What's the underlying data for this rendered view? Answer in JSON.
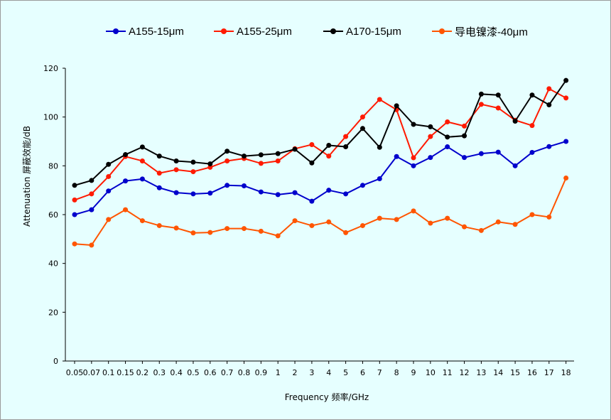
{
  "chart_data": {
    "type": "line",
    "title": "",
    "xlabel": "Frequency 频率/GHz",
    "ylabel": "Attenuation 屏蔽效能/dB",
    "ylim": [
      0,
      120
    ],
    "yticks": [
      "0",
      "20",
      "40",
      "60",
      "80",
      "100",
      "120"
    ],
    "grid": false,
    "legend_position": "top",
    "categories": [
      "0.05",
      "0.07",
      "0.1",
      "0.15",
      "0.2",
      "0.3",
      "0.4",
      "0.5",
      "0.6",
      "0.7",
      "0.8",
      "0.9",
      "1",
      "2",
      "3",
      "4",
      "5",
      "6",
      "7",
      "8",
      "9",
      "10",
      "11",
      "12",
      "13",
      "14",
      "15",
      "16",
      "17",
      "18"
    ],
    "series": [
      {
        "name": "A155-15μm",
        "color": "#0000cc",
        "values": [
          60,
          62,
          69.7,
          73.8,
          74.6,
          71,
          69,
          68.5,
          68.8,
          72,
          71.8,
          69.3,
          68.2,
          69,
          65.5,
          70,
          68.5,
          72,
          74.7,
          83.8,
          80,
          83.4,
          87.8,
          83.4,
          85,
          85.6,
          80,
          85.5,
          87.9,
          90
        ]
      },
      {
        "name": "A155-25μm",
        "color": "#ff1a00",
        "values": [
          66,
          68.5,
          75.6,
          83.8,
          82,
          77,
          78.4,
          77.6,
          79.4,
          82,
          83,
          81,
          82,
          87,
          88.7,
          84,
          92,
          100,
          107.2,
          103,
          83.3,
          92,
          98,
          96.3,
          105.2,
          103.7,
          98.7,
          96.5,
          111.6,
          107.8
        ]
      },
      {
        "name": "A170-15μm",
        "color": "#000000",
        "values": [
          72,
          74,
          80.6,
          84.6,
          87.7,
          84,
          82,
          81.5,
          80.8,
          86,
          84,
          84.5,
          85,
          86.8,
          81.2,
          88.4,
          87.8,
          95.3,
          87.6,
          104.6,
          97,
          96,
          91.8,
          92.3,
          109.4,
          109,
          98.3,
          109,
          105,
          115
        ]
      },
      {
        "name": "导电镍漆-40μm",
        "color": "#ff5500",
        "values": [
          48,
          47.5,
          58,
          62,
          57.5,
          55.5,
          54.5,
          52.5,
          52.7,
          54.3,
          54.3,
          53.2,
          51.3,
          57.5,
          55.5,
          57,
          52.6,
          55.5,
          58.5,
          58,
          61.5,
          56.5,
          58.5,
          55,
          53.5,
          57,
          56,
          60,
          59,
          75
        ]
      }
    ]
  }
}
